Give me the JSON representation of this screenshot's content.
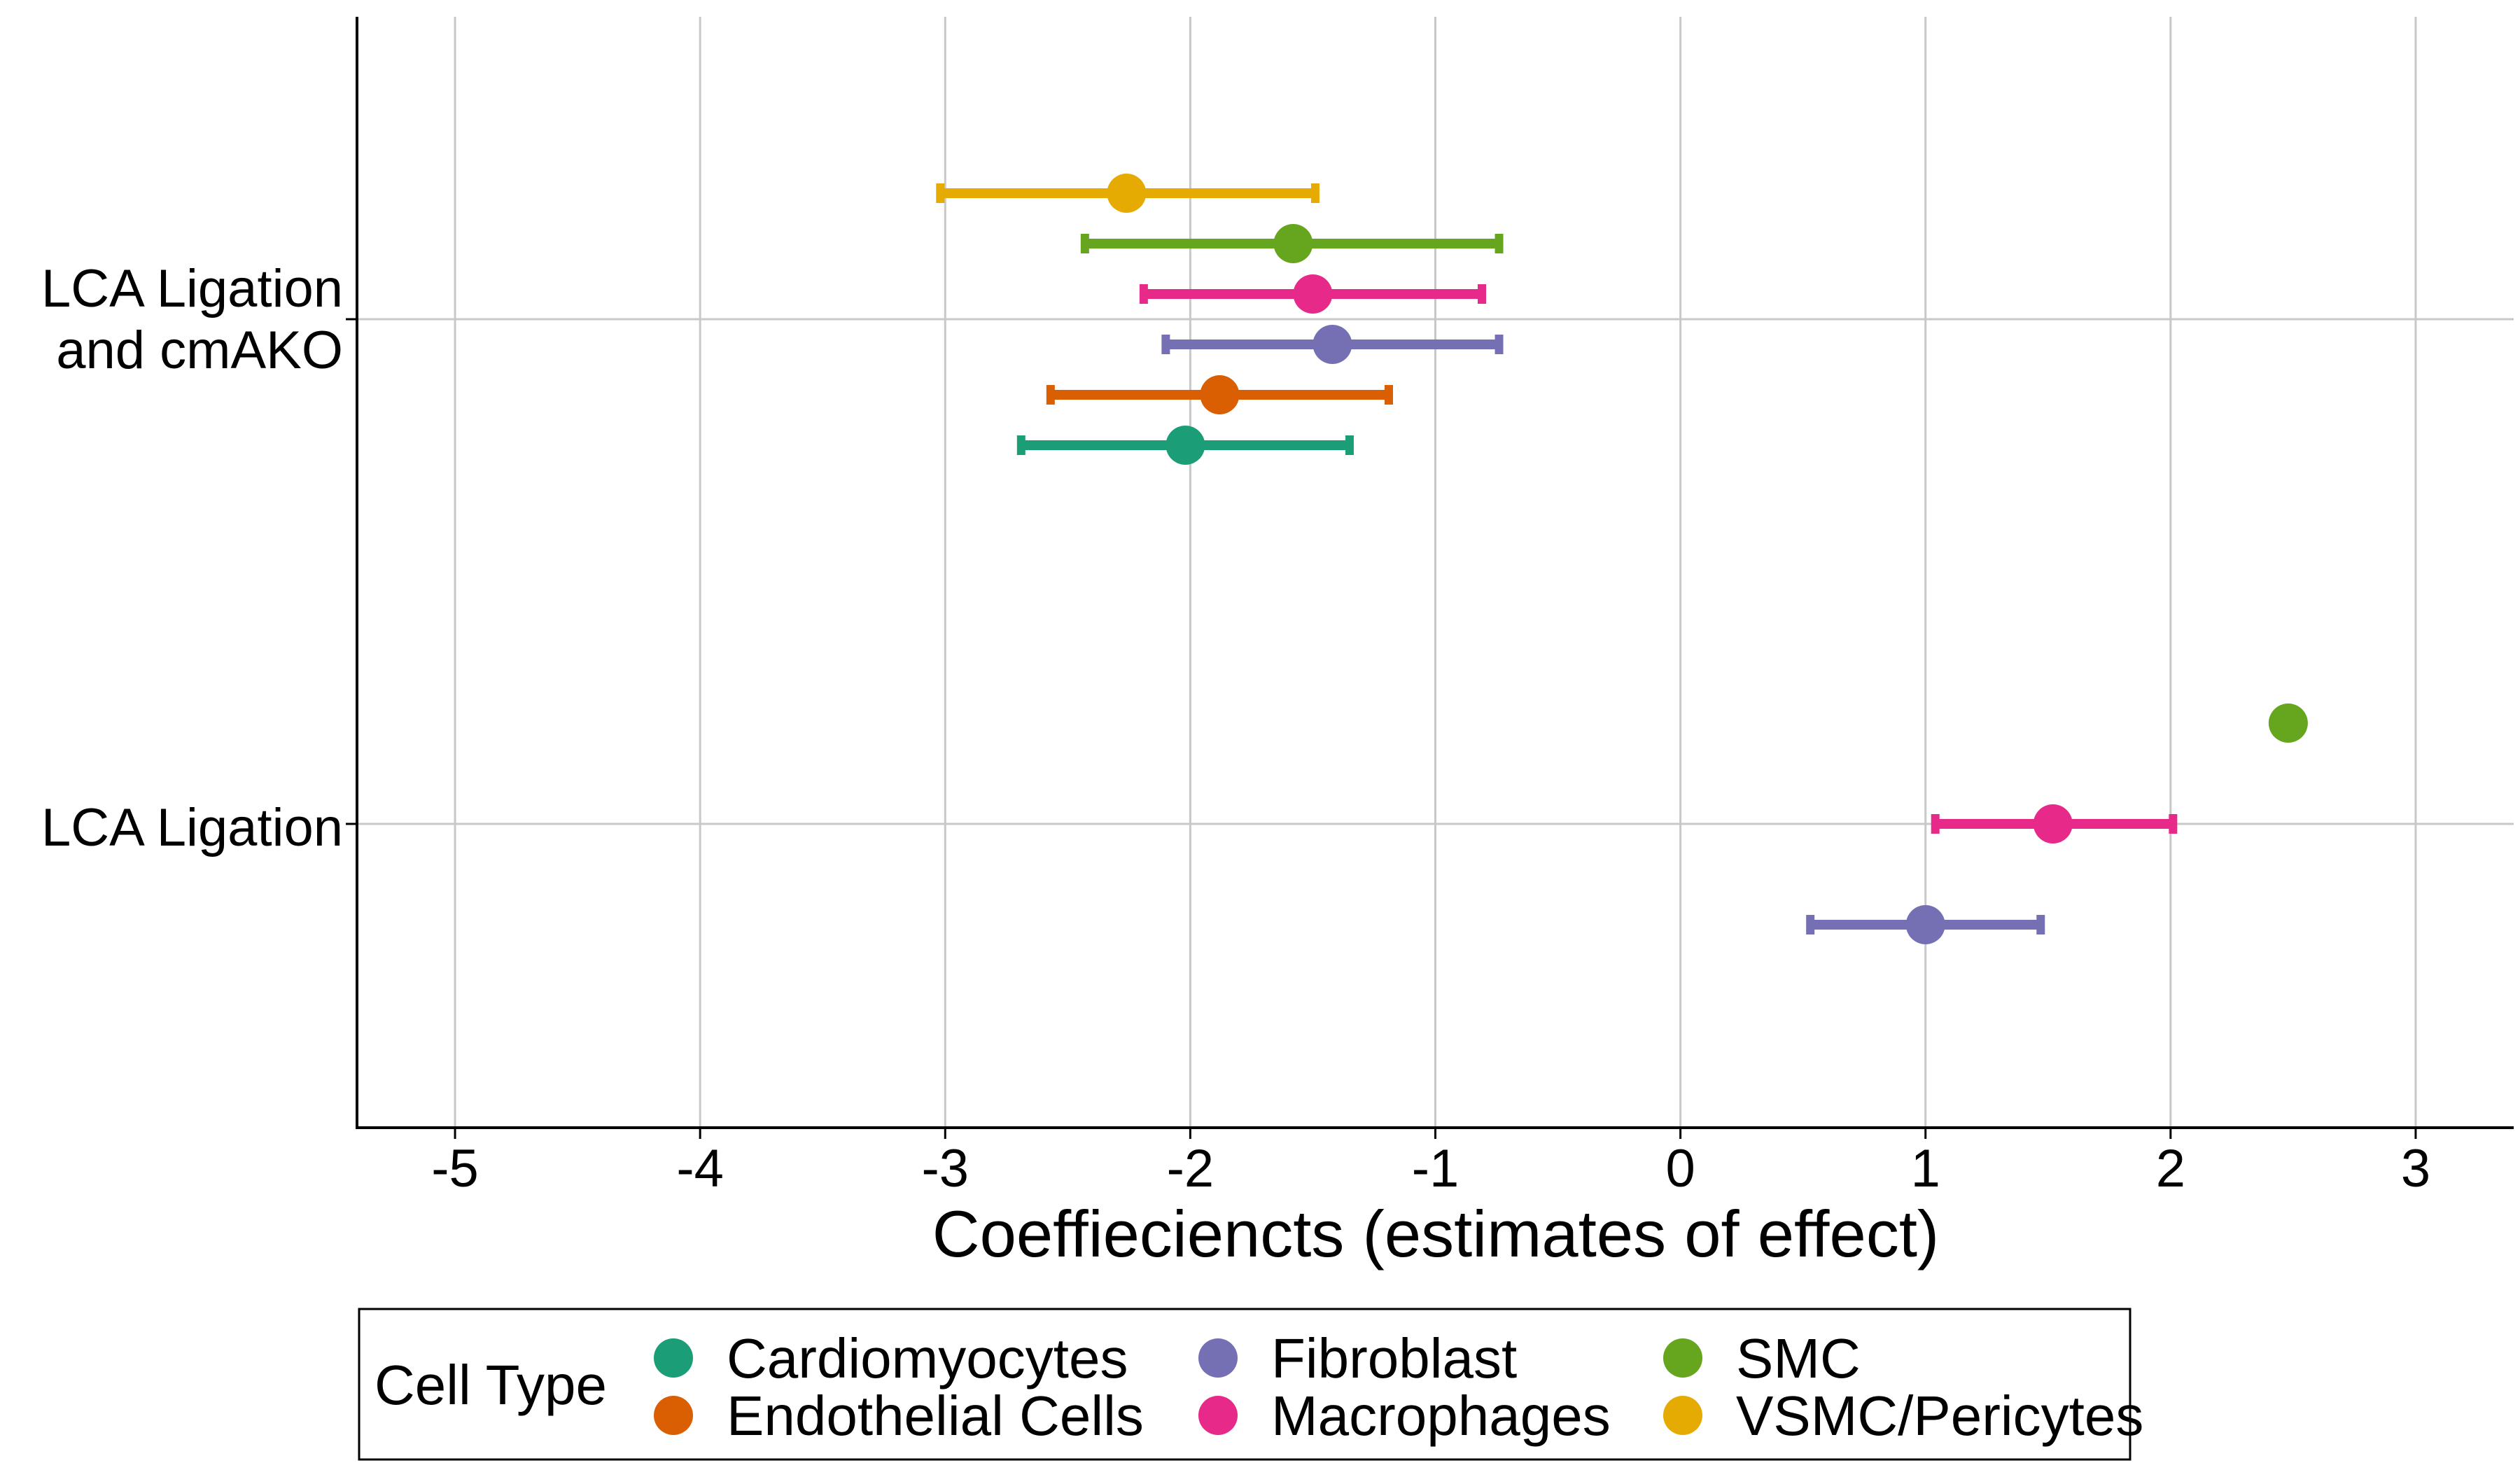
{
  "chart_data": {
    "type": "scatter",
    "subtype": "coefficient-plot-with-error-bars",
    "orientation": "horizontal",
    "xlabel": "Coeffieciencts (estimates of effect)",
    "xlim": [
      -5.4,
      3.4
    ],
    "xticks": [
      -5,
      -4,
      -3,
      -2,
      -1,
      0,
      1,
      2,
      3
    ],
    "grid": true,
    "legend_position": "bottom",
    "legend_title": "Cell Type",
    "groups": [
      {
        "key": "lca_cmako",
        "label_lines": [
          "LCA Ligation",
          "and cmAKO"
        ]
      },
      {
        "key": "lca",
        "label_lines": [
          "LCA Ligation"
        ]
      }
    ],
    "series": [
      {
        "name": "Cardiomyocytes",
        "color": "#1B9E77",
        "points": [
          {
            "group": "lca_cmako",
            "estimate": -2.02,
            "low": -2.69,
            "high": -1.35
          }
        ]
      },
      {
        "name": "Endothelial Cells",
        "color": "#D95F02",
        "points": [
          {
            "group": "lca_cmako",
            "estimate": -1.88,
            "low": -2.57,
            "high": -1.19
          }
        ]
      },
      {
        "name": "Fibroblast",
        "color": "#7570B3",
        "points": [
          {
            "group": "lca_cmako",
            "estimate": -1.42,
            "low": -2.1,
            "high": -0.74
          },
          {
            "group": "lca",
            "estimate": 1.0,
            "low": 0.53,
            "high": 1.47
          }
        ]
      },
      {
        "name": "Macrophages",
        "color": "#E7298A",
        "points": [
          {
            "group": "lca_cmako",
            "estimate": -1.5,
            "low": -2.19,
            "high": -0.81
          },
          {
            "group": "lca",
            "estimate": 1.52,
            "low": 1.04,
            "high": 2.01
          }
        ]
      },
      {
        "name": "SMC",
        "color": "#66A61E",
        "points": [
          {
            "group": "lca_cmako",
            "estimate": -1.58,
            "low": -2.43,
            "high": -0.74
          },
          {
            "group": "lca",
            "estimate": 2.48,
            "low": null,
            "high": null
          }
        ]
      },
      {
        "name": "VSMC/Pericytes",
        "color": "#E6AB02",
        "points": [
          {
            "group": "lca_cmako",
            "estimate": -2.26,
            "low": -3.02,
            "high": -1.49
          }
        ]
      }
    ]
  }
}
